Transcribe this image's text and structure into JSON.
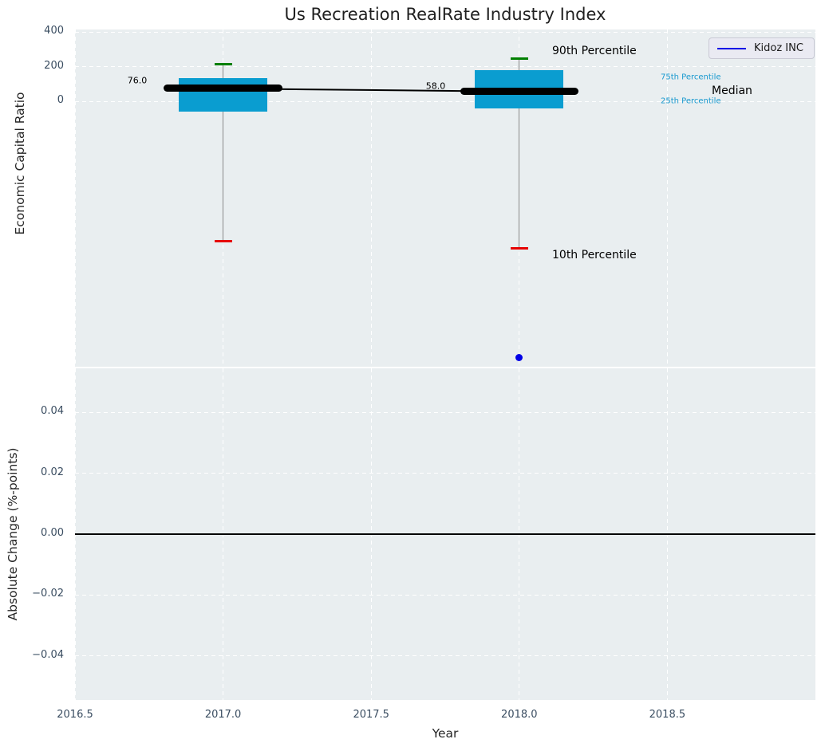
{
  "chart_data": {
    "type": "box",
    "title": "Us Recreation RealRate Industry Index",
    "xlabel": "Year",
    "legend": {
      "label": "Kidoz INC",
      "position": "upper right"
    },
    "grid": true,
    "xlim": [
      2016.5,
      2019.0
    ],
    "xticks": [
      2016.5,
      2017.0,
      2017.5,
      2018.0,
      2018.5
    ],
    "xtick_labels": [
      "2016.5",
      "2017.0",
      "2017.5",
      "2018.0",
      "2018.5"
    ],
    "subplots": [
      {
        "ylabel": "Economic Capital Ratio",
        "ylim": [
          -1530,
          415
        ],
        "yticks": [
          400,
          200,
          0
        ],
        "ytick_labels": [
          "400",
          "200",
          "0"
        ],
        "boxes": [
          {
            "x": 2017.0,
            "p10": -805,
            "p25": -60,
            "median": 76.0,
            "p75": 135,
            "p90": 215,
            "median_label": "76.0"
          },
          {
            "x": 2018.0,
            "p10": -845,
            "p25": -40,
            "median": 58.0,
            "p75": 180,
            "p90": 245,
            "median_label": "58.0"
          }
        ],
        "median_trend": [
          {
            "x": 2017.0,
            "y": 76.0
          },
          {
            "x": 2018.0,
            "y": 58.0
          }
        ],
        "series": [
          {
            "name": "Kidoz INC",
            "color": "#0000e6",
            "points": [
              {
                "x": 2018.0,
                "y": -1475
              }
            ]
          }
        ]
      },
      {
        "ylabel": "Absolute Change (%-points)",
        "ylim": [
          -0.0545,
          0.0545
        ],
        "yticks": [
          0.04,
          0.02,
          0.0,
          -0.02,
          -0.04
        ],
        "ytick_labels": [
          "0.04",
          "0.02",
          "0.00",
          "−0.02",
          "−0.04"
        ],
        "zero_line": 0.0,
        "series": []
      }
    ],
    "annotations": [
      {
        "text": "76.0",
        "x": 172,
        "y": 101,
        "size": 11,
        "color": "#000000",
        "align": "center"
      },
      {
        "text": "58.0",
        "x": 546,
        "y": 108,
        "size": 11,
        "color": "#000000",
        "align": "center"
      },
      {
        "text": "90th Percentile",
        "x": 692,
        "y": 64,
        "size": 14,
        "color": "#000000",
        "align": "left"
      },
      {
        "text": "10th Percentile",
        "x": 692,
        "y": 320,
        "size": 14,
        "color": "#000000",
        "align": "left"
      },
      {
        "text": "75th Percentile",
        "x": 828,
        "y": 97,
        "size": 10,
        "color": "#1899cf",
        "align": "left"
      },
      {
        "text": "Median",
        "x": 892,
        "y": 114,
        "size": 14,
        "color": "#000000",
        "align": "left"
      },
      {
        "text": "25th Percentile",
        "x": 828,
        "y": 127,
        "size": 10,
        "color": "#1899cf",
        "align": "left"
      }
    ],
    "colors": {
      "box_fill": "#0a9dd0",
      "median": "#000000",
      "whisker": "#8a8a8a",
      "p90_cap": "#008000",
      "p10_cap": "#e60000",
      "series_line": "#0000e6",
      "percentile_label": "#1899cf",
      "axes_background": "#e9eef0",
      "gridline": "#ffffff",
      "tick_text": "#3a4d61",
      "zero_line": "#000000"
    }
  }
}
